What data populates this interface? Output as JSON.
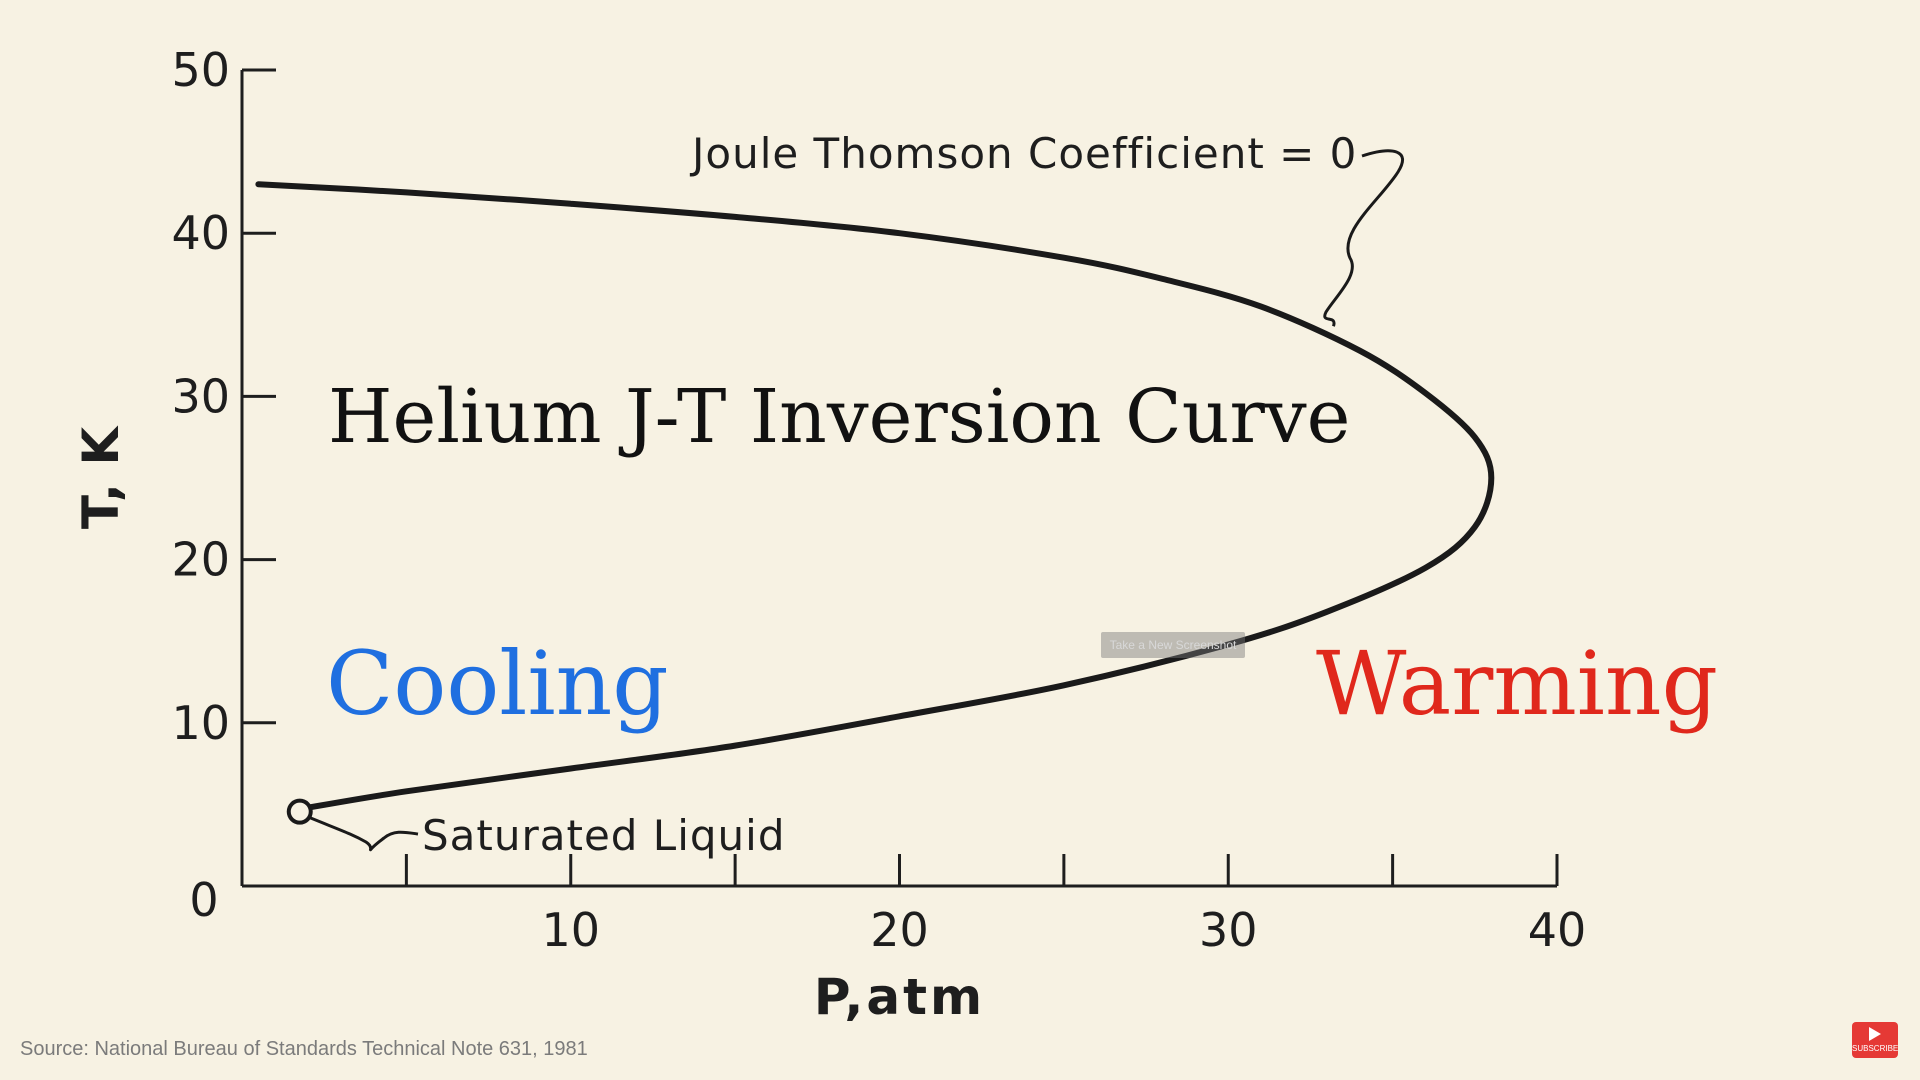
{
  "chart_data": {
    "type": "line",
    "title": "Helium J-T Inversion Curve",
    "xlabel": "P,atm",
    "ylabel": "T, K",
    "xlim": [
      0,
      40
    ],
    "ylim": [
      0,
      50
    ],
    "xticks": [
      10,
      20,
      30,
      40
    ],
    "yticks": [
      10,
      20,
      30,
      40,
      50
    ],
    "origin_label": "0",
    "series": [
      {
        "x": [
          0.5,
          5,
          10,
          15,
          20,
          25,
          28,
          31,
          34,
          36,
          37.5,
          38,
          37.5,
          36,
          33,
          30,
          25,
          20,
          15,
          10,
          5,
          2
        ],
        "y": [
          43,
          42.5,
          41.8,
          41,
          40,
          38.5,
          37.2,
          35.5,
          32.8,
          30.2,
          27.5,
          25,
          22,
          19.5,
          16.8,
          14.8,
          12.3,
          10.4,
          8.6,
          7.2,
          5.8,
          4.8
        ]
      }
    ],
    "annotations": {
      "inversion_label": "Joule Thomson Coefficient = 0",
      "saturated_label": "Saturated Liquid",
      "cooling": "Cooling",
      "warming": "Warming"
    },
    "grid": false,
    "colors": {
      "cooling": "#1f6fe0",
      "warming": "#e0281c",
      "curve": "#1a1a1a"
    }
  },
  "footer": {
    "source": "Source: National Bureau of Standards Technical Note 631, 1981"
  },
  "overlay": {
    "button_label": "Take a New Screenshot"
  },
  "subscribe": {
    "label": "SUBSCRIBE",
    "icon": "youtube-play-icon"
  }
}
